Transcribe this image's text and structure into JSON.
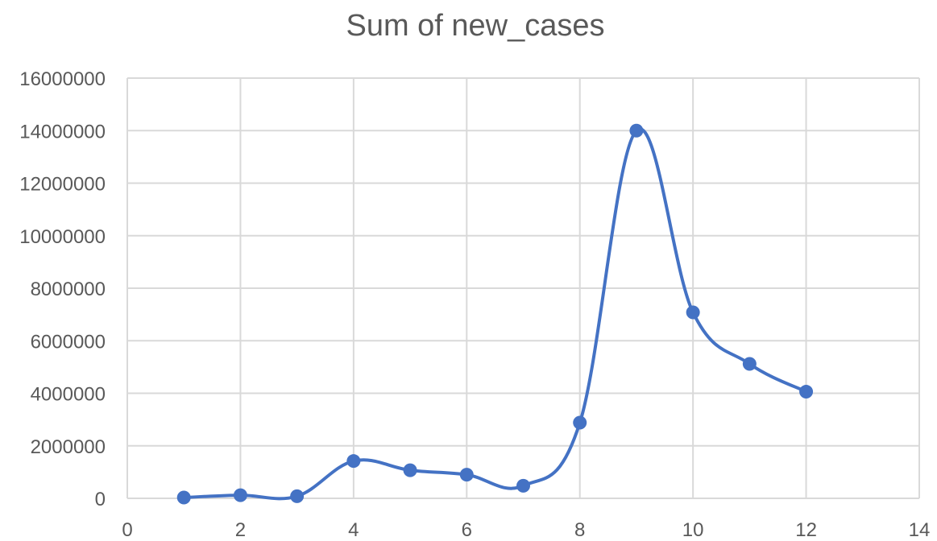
{
  "chart_data": {
    "type": "scatter",
    "title": "Sum of new_cases",
    "xlabel": "",
    "ylabel": "",
    "xlim": [
      0,
      14
    ],
    "ylim": [
      0,
      16000000
    ],
    "x_ticks": [
      0,
      2,
      4,
      6,
      8,
      10,
      12,
      14
    ],
    "y_ticks": [
      0,
      2000000,
      4000000,
      6000000,
      8000000,
      10000000,
      12000000,
      14000000,
      16000000
    ],
    "grid": true,
    "legend": "none",
    "line_style": "smooth",
    "series": [
      {
        "color": "#4472c4",
        "points": [
          {
            "x": 1,
            "y": 30000
          },
          {
            "x": 2,
            "y": 120000
          },
          {
            "x": 3,
            "y": 80000
          },
          {
            "x": 4,
            "y": 1420000
          },
          {
            "x": 5,
            "y": 1070000
          },
          {
            "x": 6,
            "y": 900000
          },
          {
            "x": 7,
            "y": 480000
          },
          {
            "x": 8,
            "y": 2880000
          },
          {
            "x": 9,
            "y": 14000000
          },
          {
            "x": 10,
            "y": 7080000
          },
          {
            "x": 11,
            "y": 5120000
          },
          {
            "x": 12,
            "y": 4060000
          }
        ]
      }
    ]
  }
}
